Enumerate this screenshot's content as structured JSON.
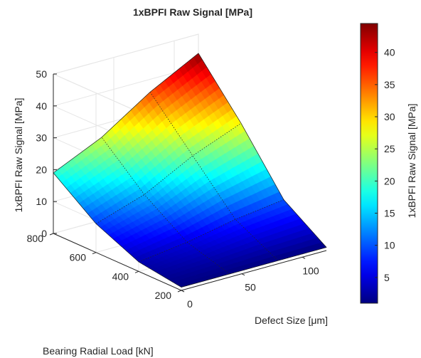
{
  "chart_data": {
    "type": "surface",
    "title": "1xBPFI Raw Signal [MPa]",
    "xlabel": "Defect Size [μm]",
    "ylabel": "Bearing Radial Load [kN]",
    "zlabel": "1xBPFI Raw Signal [MPa]",
    "colorbar_label": "1xBPFI Raw Signal [MPa]",
    "colormap": "jet",
    "x": [
      0,
      40,
      80,
      120
    ],
    "y": [
      200,
      400,
      600,
      800
    ],
    "z": [
      [
        1,
        1,
        1,
        1
      ],
      [
        3,
        5,
        8,
        10
      ],
      [
        9,
        14,
        22,
        28
      ],
      [
        19,
        26,
        36,
        44
      ]
    ],
    "xlim": [
      0,
      120
    ],
    "ylim": [
      200,
      800
    ],
    "zlim": [
      0,
      50
    ],
    "clim": [
      1,
      44.5
    ],
    "xticks": [
      0,
      50,
      100
    ],
    "yticks": [
      200,
      400,
      600,
      800
    ],
    "zticks": [
      0,
      10,
      20,
      30,
      40,
      50
    ],
    "cticks": [
      5,
      10,
      15,
      20,
      25,
      30,
      35,
      40
    ],
    "grid": true
  }
}
